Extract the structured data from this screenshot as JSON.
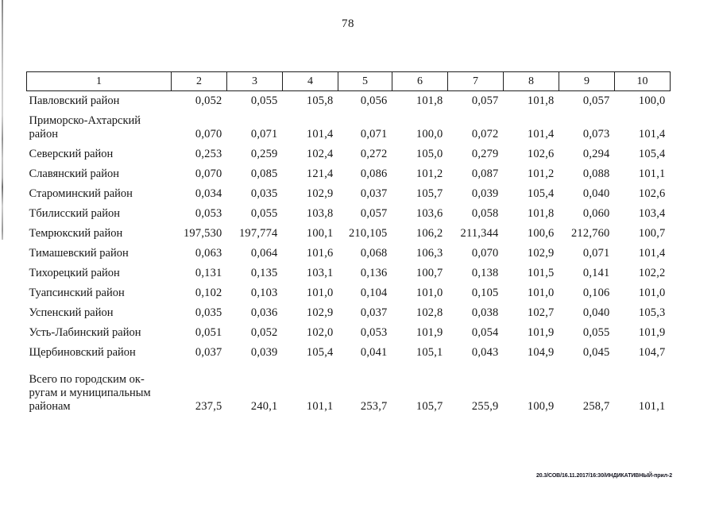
{
  "page": {
    "number": "78",
    "footer_stamp": "20.3/СОВ/16.11.2017/16:30/ИНДИКАТИВНЫЙ-прил-2"
  },
  "table": {
    "header": [
      "1",
      "2",
      "3",
      "4",
      "5",
      "6",
      "7",
      "8",
      "9",
      "10"
    ],
    "rows": [
      {
        "label": "Павловский район",
        "values": [
          "0,052",
          "0,055",
          "105,8",
          "0,056",
          "101,8",
          "0,057",
          "101,8",
          "0,057",
          "100,0"
        ]
      },
      {
        "label": "Приморско-Ахтарский\nрайон",
        "values": [
          "0,070",
          "0,071",
          "101,4",
          "0,071",
          "100,0",
          "0,072",
          "101,4",
          "0,073",
          "101,4"
        ]
      },
      {
        "label": "Северский район",
        "values": [
          "0,253",
          "0,259",
          "102,4",
          "0,272",
          "105,0",
          "0,279",
          "102,6",
          "0,294",
          "105,4"
        ]
      },
      {
        "label": "Славянский район",
        "values": [
          "0,070",
          "0,085",
          "121,4",
          "0,086",
          "101,2",
          "0,087",
          "101,2",
          "0,088",
          "101,1"
        ]
      },
      {
        "label": "Староминский район",
        "values": [
          "0,034",
          "0,035",
          "102,9",
          "0,037",
          "105,7",
          "0,039",
          "105,4",
          "0,040",
          "102,6"
        ]
      },
      {
        "label": "Тбилисский район",
        "values": [
          "0,053",
          "0,055",
          "103,8",
          "0,057",
          "103,6",
          "0,058",
          "101,8",
          "0,060",
          "103,4"
        ]
      },
      {
        "label": "Темрюкский район",
        "values": [
          "197,530",
          "197,774",
          "100,1",
          "210,105",
          "106,2",
          "211,344",
          "100,6",
          "212,760",
          "100,7"
        ]
      },
      {
        "label": "Тимашевский район",
        "values": [
          "0,063",
          "0,064",
          "101,6",
          "0,068",
          "106,3",
          "0,070",
          "102,9",
          "0,071",
          "101,4"
        ]
      },
      {
        "label": "Тихорецкий район",
        "values": [
          "0,131",
          "0,135",
          "103,1",
          "0,136",
          "100,7",
          "0,138",
          "101,5",
          "0,141",
          "102,2"
        ]
      },
      {
        "label": "Туапсинский район",
        "values": [
          "0,102",
          "0,103",
          "101,0",
          "0,104",
          "101,0",
          "0,105",
          "101,0",
          "0,106",
          "101,0"
        ]
      },
      {
        "label": "Успенский район",
        "values": [
          "0,035",
          "0,036",
          "102,9",
          "0,037",
          "102,8",
          "0,038",
          "102,7",
          "0,040",
          "105,3"
        ]
      },
      {
        "label": "Усть-Лабинский район",
        "values": [
          "0,051",
          "0,052",
          "102,0",
          "0,053",
          "101,9",
          "0,054",
          "101,9",
          "0,055",
          "101,9"
        ]
      },
      {
        "label": "Щербиновский район",
        "values": [
          "0,037",
          "0,039",
          "105,4",
          "0,041",
          "105,1",
          "0,043",
          "104,9",
          "0,045",
          "104,7"
        ]
      },
      {
        "label": "Всего по городским ок-\nругам и муниципальным\nрайонам",
        "values": [
          "237,5",
          "240,1",
          "101,1",
          "253,7",
          "105,7",
          "255,9",
          "100,9",
          "258,7",
          "101,1"
        ]
      }
    ]
  }
}
